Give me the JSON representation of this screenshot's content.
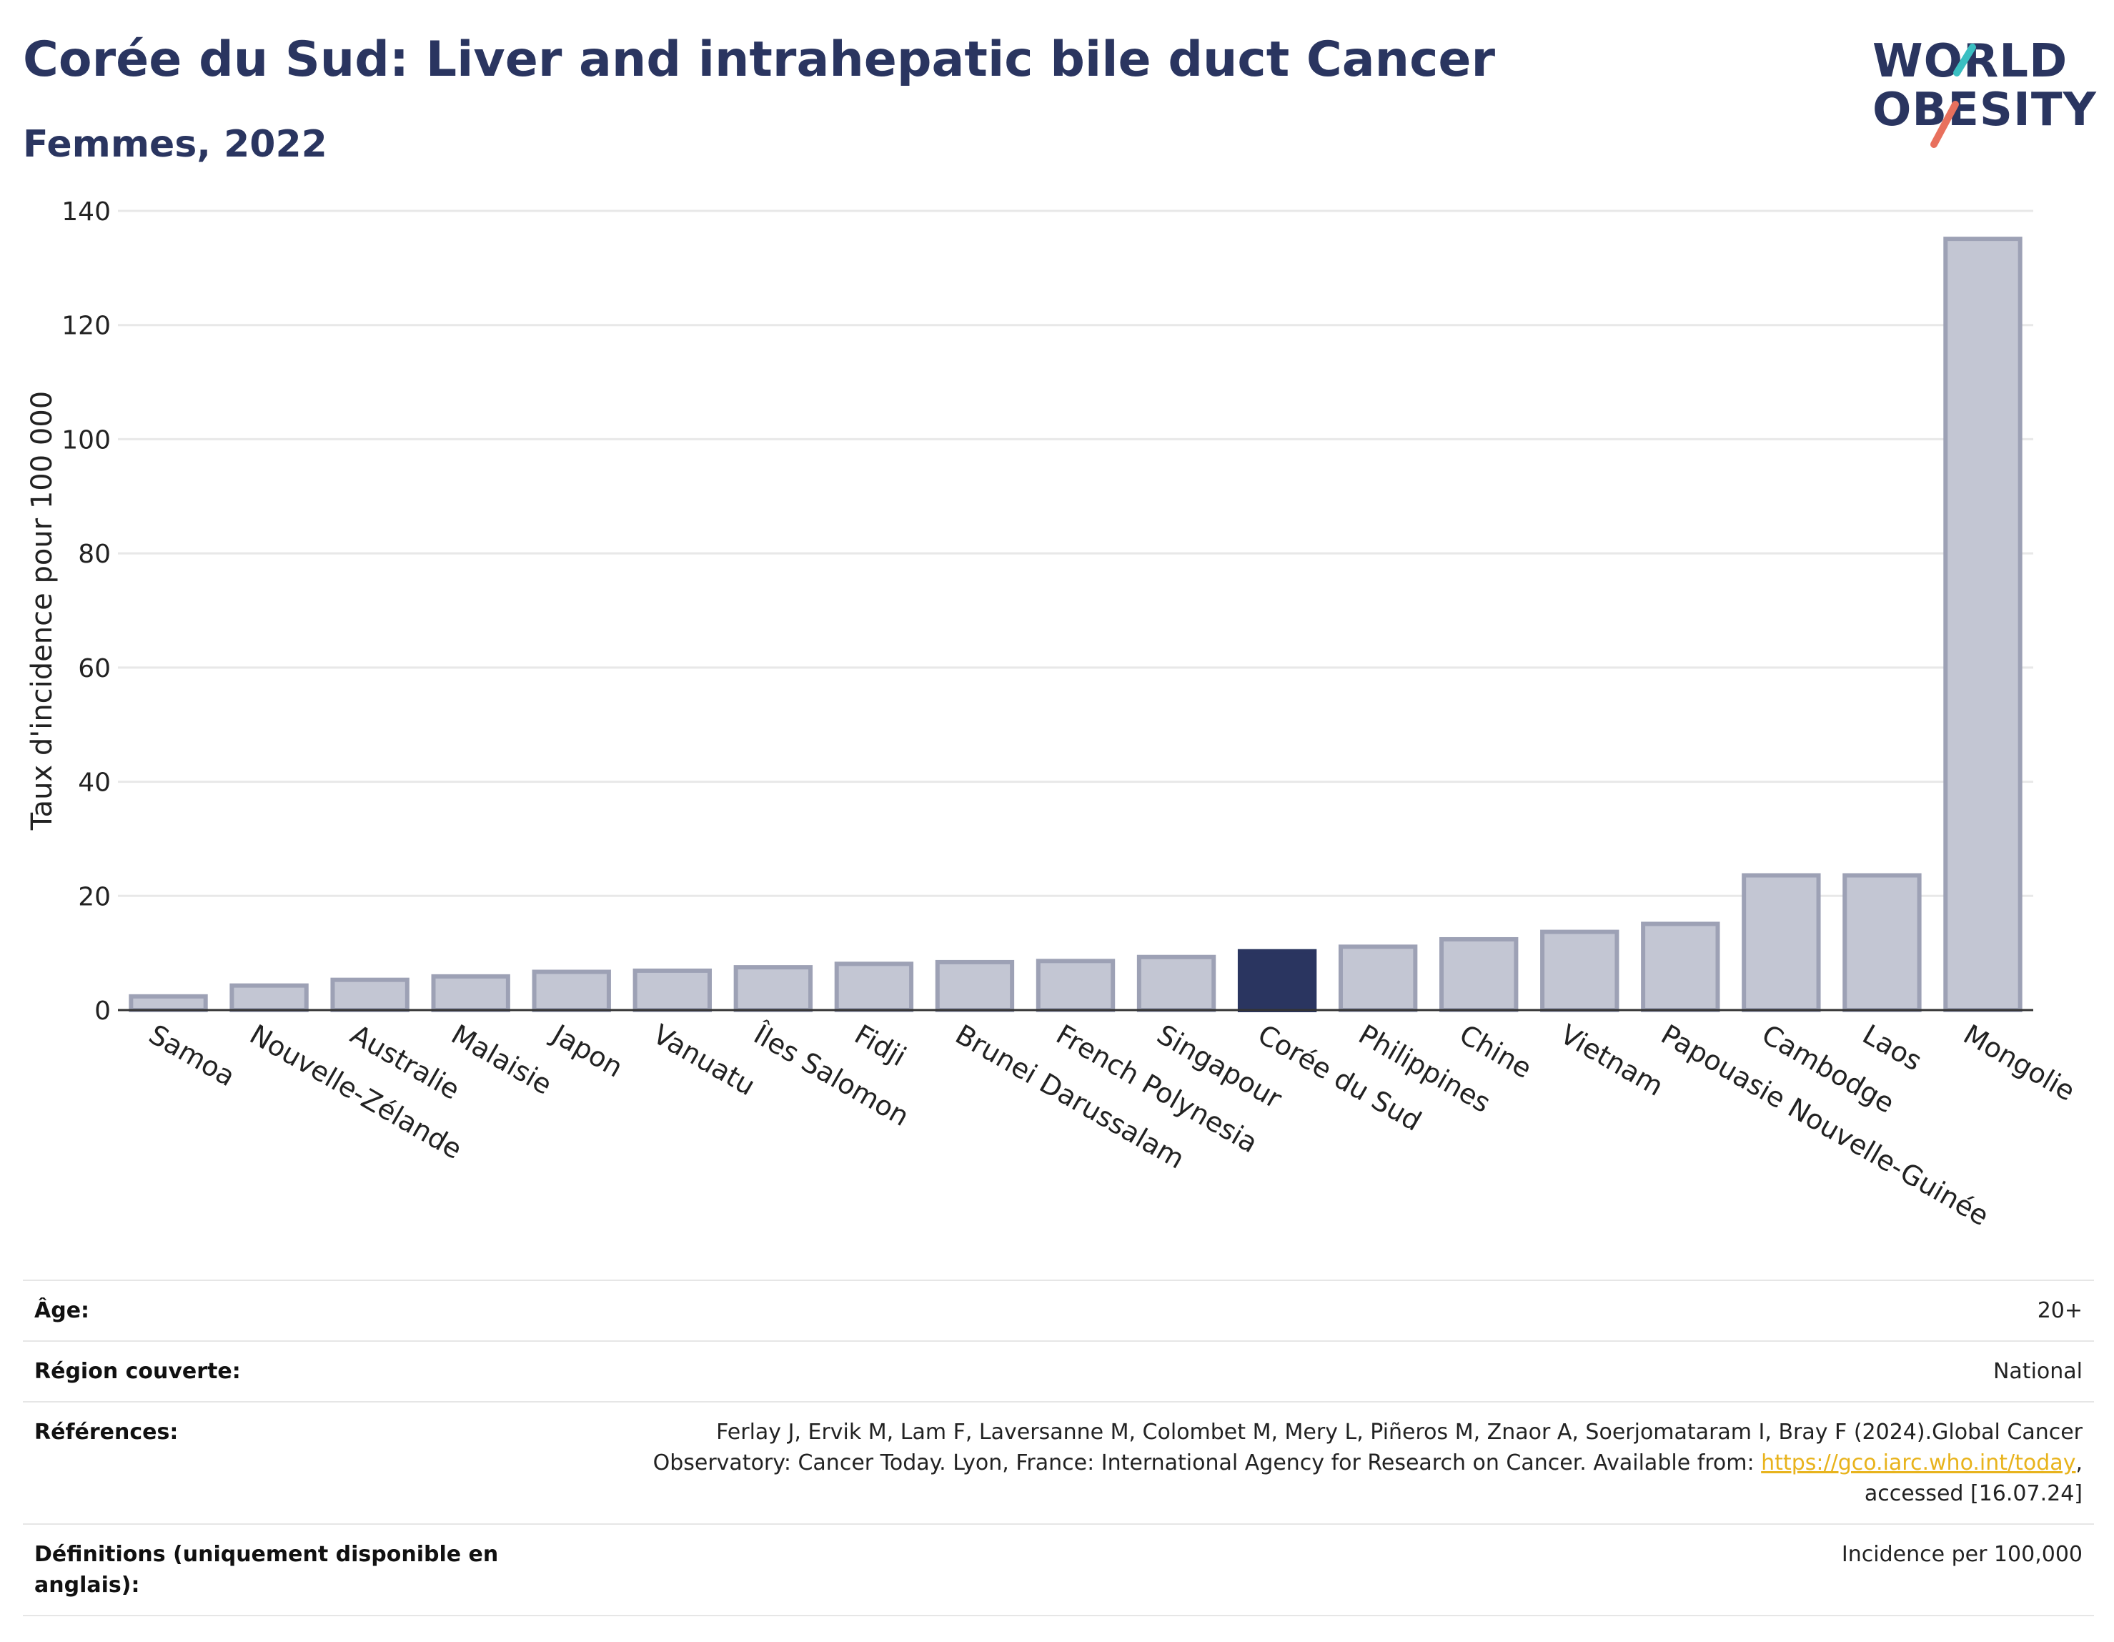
{
  "header": {
    "title": "Corée du Sud: Liver and intrahepatic bile duct Cancer",
    "subtitle": "Femmes, 2022"
  },
  "logo": {
    "line1": "WORLD",
    "line2": "OBESITY",
    "accent_colors": [
      "#3bbfc2",
      "#e8705d"
    ]
  },
  "chart_data": {
    "type": "bar",
    "ylabel": "Taux d'incidence pour 100 000",
    "ylim": [
      0,
      140
    ],
    "yticks": [
      0,
      20,
      40,
      60,
      80,
      100,
      120,
      140
    ],
    "grid": true,
    "categories": [
      "Samoa",
      "Nouvelle-Zélande",
      "Australie",
      "Malaisie",
      "Japon",
      "Vanuatu",
      "Îles Salomon",
      "Fidji",
      "Brunei Darussalam",
      "French Polynesia",
      "Singapour",
      "Corée du Sud",
      "Philippines",
      "Chine",
      "Vietnam",
      "Papouasie Nouvelle-Guinée",
      "Cambodge",
      "Laos",
      "Mongolie"
    ],
    "values": [
      2.4,
      4.3,
      5.3,
      5.9,
      6.7,
      6.9,
      7.5,
      8.1,
      8.4,
      8.6,
      9.3,
      10.3,
      11.1,
      12.4,
      13.7,
      15.1,
      23.6,
      23.6,
      135.1
    ],
    "highlight": "Corée du Sud",
    "colors": {
      "bar_fill": "#c3c6d3",
      "bar_stroke": "#9da1b5",
      "highlight": "#2a3560"
    }
  },
  "meta": {
    "age_label": "Âge:",
    "age_value": "20+",
    "region_label": "Région couverte:",
    "region_value": "National",
    "references_label": "Références:",
    "references_text": "Ferlay J, Ervik M, Lam F, Laversanne M, Colombet M, Mery L, Piñeros M, Znaor A, Soerjomataram I, Bray F (2024).Global Cancer Observatory: Cancer Today. Lyon, France: International Agency for Research on Cancer. Available from: ",
    "references_link": "https://gco.iarc.who.int/today",
    "references_tail": ", accessed [16.07.24]",
    "definitions_label": "Définitions (uniquement disponible en anglais):",
    "definitions_value": "Incidence per 100,000"
  }
}
